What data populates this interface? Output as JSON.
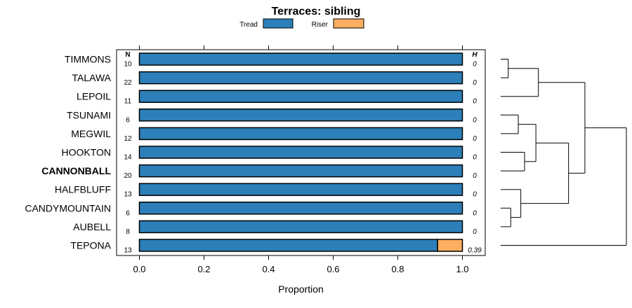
{
  "chart_data": {
    "type": "bar",
    "stacked": true,
    "orientation": "horizontal",
    "title": "Terraces: sibling",
    "xlabel": "Proportion",
    "xlim": [
      0,
      1
    ],
    "xticks": [
      "0.0",
      "0.2",
      "0.4",
      "0.6",
      "0.8",
      "1.0"
    ],
    "n_header": "N",
    "h_header": "H",
    "legend_position": "top-center",
    "highlight_category": "CANNONBALL",
    "categories": [
      "TIMMONS",
      "TALAWA",
      "LEPOIL",
      "TSUNAMI",
      "MEGWIL",
      "HOOKTON",
      "CANNONBALL",
      "HALFBLUFF",
      "CANDYMOUNTAIN",
      "AUBELL",
      "TEPONA"
    ],
    "n": [
      "10",
      "22",
      "11",
      "6",
      "12",
      "14",
      "20",
      "13",
      "6",
      "8",
      "13"
    ],
    "h": [
      "0",
      "0",
      "0",
      "0",
      "0",
      "0",
      "0",
      "0",
      "0",
      "0",
      "0.39"
    ],
    "series": [
      {
        "name": "Tread",
        "color": "#2c7fb8",
        "values": [
          1,
          1,
          1,
          1,
          1,
          1,
          1,
          1,
          1,
          1,
          0.923
        ]
      },
      {
        "name": "Riser",
        "color": "#fdae61",
        "values": [
          0,
          0,
          0,
          0,
          0,
          0,
          0,
          0,
          0,
          0,
          0.077
        ]
      }
    ],
    "dendrogram": {
      "leaf_order": [
        "TIMMONS",
        "TALAWA",
        "LEPOIL",
        "TSUNAMI",
        "MEGWIL",
        "HOOKTON",
        "CANNONBALL",
        "HALFBLUFF",
        "CANDYMOUNTAIN",
        "AUBELL",
        "TEPONA"
      ],
      "merges": [
        {
          "left": "TIMMONS",
          "right": "TALAWA",
          "height": 0.06
        },
        {
          "left": "HOOKTON",
          "right": "CANNONBALL",
          "height": 0.19
        },
        {
          "left": "CANDYMOUNTAIN",
          "right": "AUBELL",
          "height": 0.08
        },
        {
          "left": "TSUNAMI",
          "right": "MEGWIL",
          "height": 0.14
        },
        {
          "left": "HALFBLUFF",
          "right": "CANDYMOUNTAIN+AUBELL",
          "height": 0.16
        },
        {
          "left": "TIMMONS+TALAWA",
          "right": "LEPOIL",
          "height": 0.3
        },
        {
          "left": "TSUNAMI+MEGWIL",
          "right": "HOOKTON+CANNONBALL",
          "height": 0.28
        },
        {
          "left": "TSUNAMI+MEGWIL+HOOKTON+CANNONBALL",
          "right": "HALFBLUFF+CANDYMOUNTAIN+AUBELL",
          "height": 0.54
        },
        {
          "left": "TIMMONS+TALAWA+LEPOIL",
          "right": "TSUNAMI+MEGWIL+HOOKTON+CANNONBALL+HALFBLUFF+CANDYMOUNTAIN+AUBELL",
          "height": 0.67
        },
        {
          "left": "ALL_OTHERS",
          "right": "TEPONA",
          "height": 1.0
        }
      ]
    }
  }
}
